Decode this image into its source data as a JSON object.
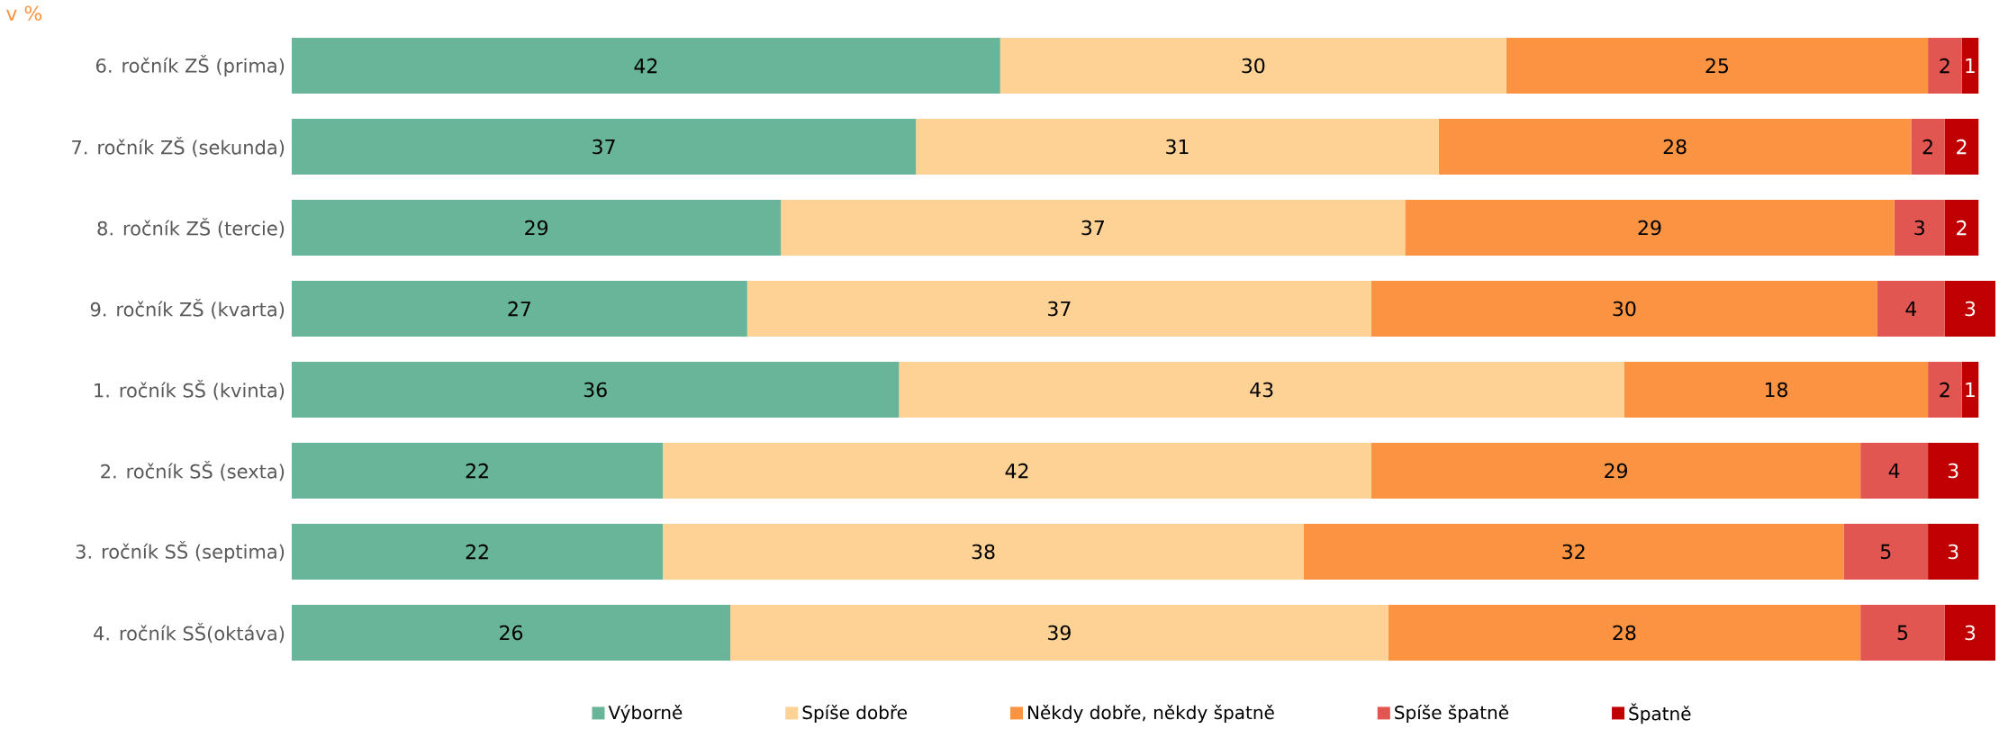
{
  "chart_data": {
    "type": "bar",
    "orientation": "horizontal",
    "stacked": true,
    "data_labels": true,
    "legend": "bottom",
    "tick_labels": "y",
    "annotations": [
      "v %"
    ],
    "categories": [
      "6. ročník ZŠ (prima)",
      "7. ročník ZŠ (sekunda)",
      "8. ročník ZŠ (tercie)",
      "9. ročník ZŠ (kvarta)",
      "1. ročník SŠ (kvinta)",
      "2. ročník SŠ (sexta)",
      "3. ročník SŠ (septima)",
      "4. ročník SŠ(oktáva)"
    ],
    "series": [
      {
        "name": "Výborně",
        "color": "#68b599",
        "values": [
          42,
          37,
          29,
          27,
          36,
          22,
          22,
          26
        ]
      },
      {
        "name": "Spíše dobře",
        "color": "#fdd294",
        "values": [
          30,
          31,
          37,
          37,
          43,
          42,
          38,
          39
        ]
      },
      {
        "name": "Někdy dobře, někdy špatně",
        "color": "#fb9442",
        "values": [
          25,
          28,
          29,
          30,
          18,
          29,
          32,
          28
        ]
      },
      {
        "name": "Spíše špatně",
        "color": "#e15651",
        "values": [
          2,
          2,
          3,
          4,
          2,
          4,
          5,
          5
        ]
      },
      {
        "name": "Špatně",
        "color": "#c00000",
        "values": [
          1,
          2,
          2,
          3,
          1,
          3,
          3,
          3
        ]
      }
    ]
  }
}
